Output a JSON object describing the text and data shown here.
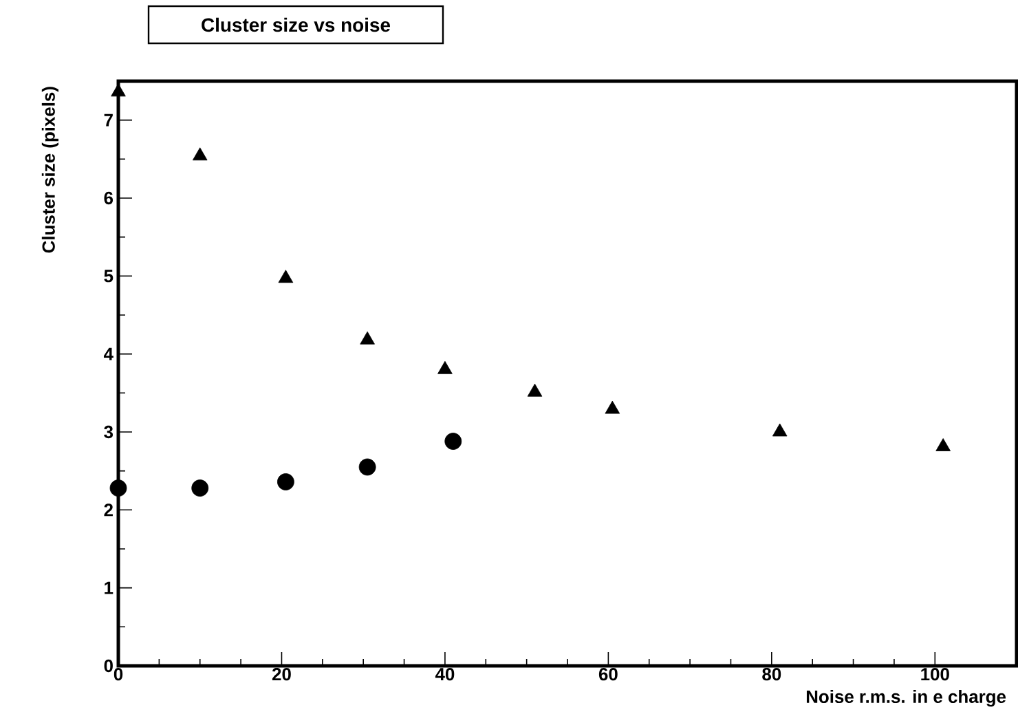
{
  "chart_data": {
    "type": "scatter",
    "title": "Cluster size vs noise",
    "xlabel": "Noise r.m.s. in e charge",
    "ylabel": "Cluster size (pixels)",
    "xlim": [
      0,
      110
    ],
    "ylim": [
      0,
      7.5
    ],
    "xticks": [
      0,
      20,
      40,
      60,
      80,
      100
    ],
    "yticks": [
      0,
      1,
      2,
      3,
      4,
      5,
      6,
      7
    ],
    "series": [
      {
        "color": "#000000",
        "marker": "triangle",
        "x": [
          0,
          10,
          20.5,
          30.5,
          40,
          51,
          60.5,
          81,
          101
        ],
        "values": [
          7.36,
          6.54,
          4.97,
          4.18,
          3.8,
          3.51,
          3.29,
          3.0,
          2.81
        ]
      },
      {
        "color": "#000000",
        "marker": "circle",
        "x": [
          0,
          10,
          20.5,
          30.5,
          41
        ],
        "values": [
          2.28,
          2.28,
          2.36,
          2.55,
          2.88
        ]
      }
    ]
  }
}
